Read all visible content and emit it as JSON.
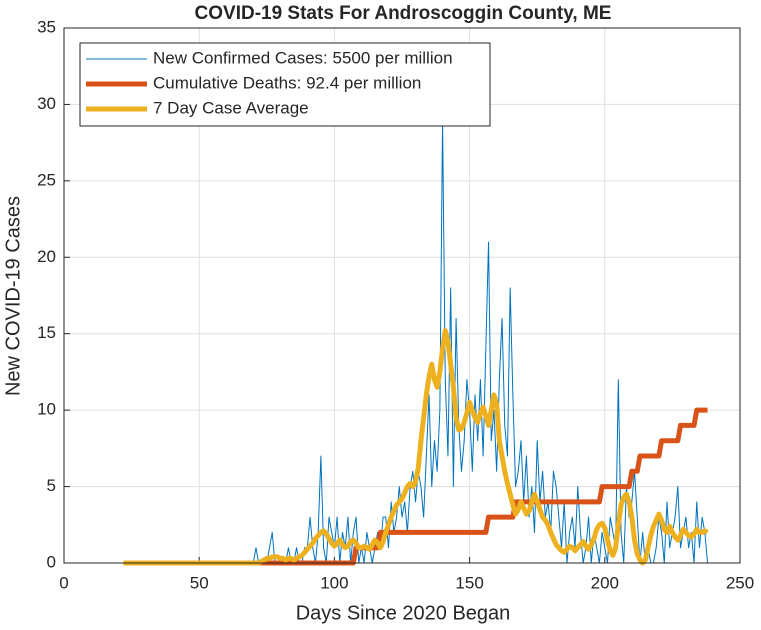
{
  "chart_data": {
    "type": "line",
    "title": "COVID-19 Stats For Androscoggin County, ME",
    "x_label": "Days Since 2020 Began",
    "y_label": "New COVID-19 Cases",
    "x": [
      22,
      23,
      24,
      25,
      26,
      27,
      28,
      29,
      30,
      31,
      32,
      33,
      34,
      35,
      36,
      37,
      38,
      39,
      40,
      41,
      42,
      43,
      44,
      45,
      46,
      47,
      48,
      49,
      50,
      51,
      52,
      53,
      54,
      55,
      56,
      57,
      58,
      59,
      60,
      61,
      62,
      63,
      64,
      65,
      66,
      67,
      68,
      69,
      70,
      71,
      72,
      73,
      74,
      75,
      76,
      77,
      78,
      79,
      80,
      81,
      82,
      83,
      84,
      85,
      86,
      87,
      88,
      89,
      90,
      91,
      92,
      93,
      94,
      95,
      96,
      97,
      98,
      99,
      100,
      101,
      102,
      103,
      104,
      105,
      106,
      107,
      108,
      109,
      110,
      111,
      112,
      113,
      114,
      115,
      116,
      117,
      118,
      119,
      120,
      121,
      122,
      123,
      124,
      125,
      126,
      127,
      128,
      129,
      130,
      131,
      132,
      133,
      134,
      135,
      136,
      137,
      138,
      139,
      140,
      141,
      142,
      143,
      144,
      145,
      146,
      147,
      148,
      149,
      150,
      151,
      152,
      153,
      154,
      155,
      156,
      157,
      158,
      159,
      160,
      161,
      162,
      163,
      164,
      165,
      166,
      167,
      168,
      169,
      170,
      171,
      172,
      173,
      174,
      175,
      176,
      177,
      178,
      179,
      180,
      181,
      182,
      183,
      184,
      185,
      186,
      187,
      188,
      189,
      190,
      191,
      192,
      193,
      194,
      195,
      196,
      197,
      198,
      199,
      200,
      201,
      202,
      203,
      204,
      205,
      206,
      207,
      208,
      209,
      210,
      211,
      212,
      213,
      214,
      215,
      216,
      217,
      218,
      219,
      220,
      221,
      222,
      223,
      224,
      225,
      226,
      227,
      228,
      229,
      230,
      231,
      232,
      233,
      234,
      235,
      236,
      237,
      238
    ],
    "series": [
      {
        "name": "New Confirmed Cases: 5500 per million",
        "color": "#0072BD",
        "width": 1,
        "values": [
          0,
          0,
          0,
          0,
          0,
          0,
          0,
          0,
          0,
          0,
          0,
          0,
          0,
          0,
          0,
          0,
          0,
          0,
          0,
          0,
          0,
          0,
          0,
          0,
          0,
          0,
          0,
          0,
          0,
          0,
          0,
          0,
          0,
          0,
          0,
          0,
          0,
          0,
          0,
          0,
          0,
          0,
          0,
          0,
          0,
          0,
          0,
          0,
          0,
          1,
          0,
          0,
          0,
          0,
          1,
          2,
          0,
          0,
          0,
          0,
          0,
          1,
          0,
          0,
          1,
          0,
          0,
          1,
          1,
          3,
          1,
          0,
          2,
          7,
          1,
          0,
          3,
          2,
          1,
          3,
          0,
          2,
          1,
          3,
          0,
          2,
          3,
          0,
          1,
          0,
          2,
          1,
          0,
          1,
          2,
          1,
          3,
          3,
          1,
          4,
          2,
          3,
          5,
          3,
          4,
          2,
          5,
          6,
          4,
          6,
          5,
          3,
          7,
          11,
          5,
          8,
          6,
          10,
          29,
          12,
          7,
          18,
          5,
          16,
          9,
          6,
          8,
          12,
          10,
          6,
          11,
          8,
          12,
          7,
          14,
          21,
          8,
          10,
          6,
          12,
          16,
          9,
          7,
          18,
          11,
          5,
          6,
          8,
          4,
          7,
          3,
          5,
          2,
          8,
          4,
          6,
          3,
          4,
          2,
          6,
          5,
          3,
          1,
          4,
          0,
          2,
          3,
          1,
          5,
          2,
          0,
          1,
          3,
          0,
          2,
          1,
          0,
          2,
          1,
          0,
          3,
          2,
          1,
          12,
          2,
          0,
          5,
          3,
          4,
          6,
          3,
          0,
          2,
          0,
          1,
          0,
          0,
          1,
          3,
          2,
          0,
          4,
          1,
          2,
          3,
          5,
          1,
          2,
          3,
          1,
          2,
          0,
          4,
          1,
          3,
          2,
          0
        ]
      },
      {
        "name": "Cumulative Deaths: 92.4 per million",
        "color": "#D95319",
        "width": 5,
        "values": [
          0,
          0,
          0,
          0,
          0,
          0,
          0,
          0,
          0,
          0,
          0,
          0,
          0,
          0,
          0,
          0,
          0,
          0,
          0,
          0,
          0,
          0,
          0,
          0,
          0,
          0,
          0,
          0,
          0,
          0,
          0,
          0,
          0,
          0,
          0,
          0,
          0,
          0,
          0,
          0,
          0,
          0,
          0,
          0,
          0,
          0,
          0,
          0,
          0,
          0,
          0,
          0,
          0,
          0,
          0,
          0,
          0,
          0,
          0,
          0,
          0,
          0,
          0,
          0,
          0,
          0,
          0,
          0,
          0,
          0,
          0,
          0,
          0,
          0,
          0,
          0,
          0,
          0,
          0,
          0,
          0,
          0,
          0,
          0,
          0,
          0,
          1,
          1,
          1,
          1,
          1,
          1,
          1,
          1,
          1,
          2,
          2,
          2,
          2,
          2,
          2,
          2,
          2,
          2,
          2,
          2,
          2,
          2,
          2,
          2,
          2,
          2,
          2,
          2,
          2,
          2,
          2,
          2,
          2,
          2,
          2,
          2,
          2,
          2,
          2,
          2,
          2,
          2,
          2,
          2,
          2,
          2,
          2,
          2,
          2,
          3,
          3,
          3,
          3,
          3,
          3,
          3,
          3,
          3,
          3,
          4,
          4,
          4,
          4,
          4,
          4,
          4,
          4,
          4,
          4,
          4,
          4,
          4,
          4,
          4,
          4,
          4,
          4,
          4,
          4,
          4,
          4,
          4,
          4,
          4,
          4,
          4,
          4,
          4,
          4,
          4,
          4,
          5,
          5,
          5,
          5,
          5,
          5,
          5,
          5,
          5,
          5,
          5,
          6,
          6,
          6,
          7,
          7,
          7,
          7,
          7,
          7,
          7,
          7,
          8,
          8,
          8,
          8,
          8,
          8,
          8,
          9,
          9,
          9,
          9,
          9,
          9,
          10,
          10,
          10,
          10,
          10
        ]
      },
      {
        "name": "7 Day Case Average",
        "color": "#EDB120",
        "width": 5,
        "values": [
          0,
          0,
          0,
          0,
          0,
          0,
          0,
          0,
          0,
          0,
          0,
          0,
          0,
          0,
          0,
          0,
          0,
          0,
          0,
          0,
          0,
          0,
          0,
          0,
          0,
          0,
          0,
          0,
          0,
          0,
          0,
          0,
          0,
          0,
          0,
          0,
          0,
          0,
          0,
          0,
          0,
          0,
          0,
          0,
          0,
          0,
          0,
          0,
          0,
          0,
          0,
          0.1,
          0.2,
          0.3,
          0.3,
          0.4,
          0.4,
          0.4,
          0.3,
          0.3,
          0.2,
          0.3,
          0.3,
          0.2,
          0.3,
          0.4,
          0.5,
          0.7,
          0.9,
          1.1,
          1.3,
          1.6,
          1.8,
          2.0,
          2.1,
          1.9,
          1.6,
          1.3,
          1.1,
          1.3,
          1.5,
          1.2,
          1.0,
          1.1,
          1.4,
          1.5,
          1.3,
          1.0,
          1.0,
          1.1,
          1.0,
          0.9,
          1.2,
          1.5,
          1.3,
          1.0,
          1.4,
          2.0,
          2.5,
          3.0,
          3.4,
          3.8,
          4.0,
          4.2,
          4.6,
          5.0,
          5.2,
          5.0,
          5.3,
          6.2,
          8.0,
          9.5,
          11.0,
          12.2,
          13.0,
          12.0,
          11.5,
          12.5,
          14.0,
          15.2,
          14.5,
          13.0,
          11.5,
          9.5,
          8.7,
          8.8,
          9.2,
          9.8,
          10.5,
          10.0,
          9.5,
          9.2,
          9.8,
          10.2,
          9.6,
          9.0,
          10.0,
          11.0,
          10.4,
          8.0,
          7.0,
          6.0,
          5.2,
          4.5,
          3.8,
          3.2,
          3.5,
          4.0,
          3.6,
          3.2,
          3.4,
          4.0,
          4.5,
          4.0,
          3.5,
          3.0,
          2.8,
          2.5,
          2.0,
          1.6,
          1.2,
          1.0,
          0.8,
          0.7,
          0.9,
          1.1,
          1.0,
          0.8,
          1.0,
          1.2,
          1.4,
          1.1,
          0.9,
          1.2,
          1.6,
          2.2,
          2.5,
          2.6,
          2.3,
          1.5,
          0.8,
          0.5,
          1.0,
          2.5,
          3.8,
          4.3,
          4.5,
          4.0,
          3.0,
          1.5,
          0.6,
          0.2,
          0.0,
          0.2,
          1.0,
          1.8,
          2.4,
          2.8,
          3.2,
          2.8,
          2.2,
          2.0,
          2.4,
          2.0,
          1.7,
          1.5,
          1.8,
          2.2,
          2.0,
          1.8,
          1.7,
          1.9,
          2.2,
          2.0,
          2.0,
          2.1,
          2.0
        ]
      }
    ],
    "xlim": [
      0,
      250
    ],
    "xticks": [
      0,
      50,
      100,
      150,
      200,
      250
    ],
    "ylim": [
      0,
      35
    ],
    "yticks": [
      0,
      5,
      10,
      15,
      20,
      25,
      30,
      35
    ],
    "grid": true,
    "legend": "northwest"
  }
}
